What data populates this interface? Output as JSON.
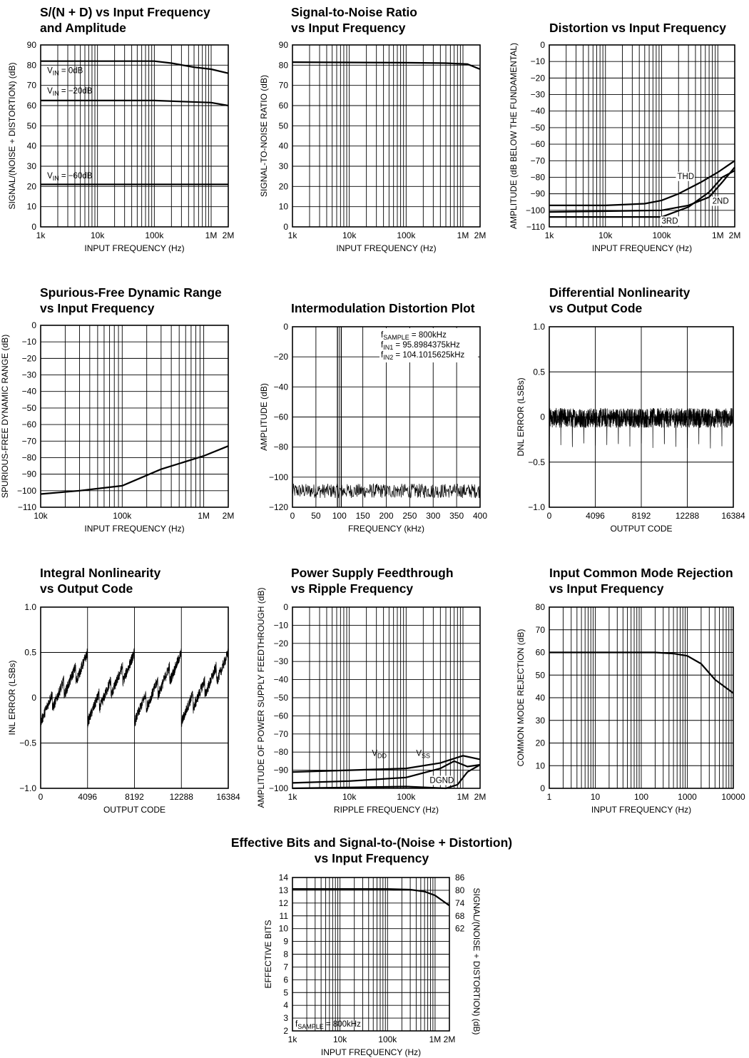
{
  "chart_data": [
    {
      "type": "line",
      "title": [
        "S/(N + D) vs Input Frequency",
        "and Amplitude"
      ],
      "xlabel": "INPUT FREQUENCY (Hz)",
      "ylabel": "SIGNAL/(NOISE + DISTORTION) (dB)",
      "xscale": "log",
      "xlim": [
        1000,
        2000000
      ],
      "ylim": [
        0,
        90
      ],
      "xticks": [
        {
          "v": 1000,
          "t": "1k"
        },
        {
          "v": 10000,
          "t": "10k"
        },
        {
          "v": 100000,
          "t": "100k"
        },
        {
          "v": 1000000,
          "t": "1M"
        },
        {
          "v": 2000000,
          "t": "2M"
        }
      ],
      "yticks": [
        {
          "v": 0,
          "t": "0"
        },
        {
          "v": 10,
          "t": "10"
        },
        {
          "v": 20,
          "t": "20"
        },
        {
          "v": 30,
          "t": "30"
        },
        {
          "v": 40,
          "t": "40"
        },
        {
          "v": 50,
          "t": "50"
        },
        {
          "v": 60,
          "t": "60"
        },
        {
          "v": 70,
          "t": "70"
        },
        {
          "v": 80,
          "t": "80"
        },
        {
          "v": 90,
          "t": "90"
        }
      ],
      "series": [
        {
          "name": "VIN = 0dB",
          "x": [
            1000,
            100000,
            200000,
            500000,
            1000000,
            2000000
          ],
          "y": [
            82,
            82,
            81,
            79,
            78,
            76
          ]
        },
        {
          "name": "VIN = −20dB",
          "x": [
            1000,
            100000,
            300000,
            1000000,
            2000000
          ],
          "y": [
            62.5,
            62.5,
            62,
            61.5,
            60
          ]
        },
        {
          "name": "VIN = −60dB",
          "x": [
            1000,
            2000000
          ],
          "y": [
            21,
            21
          ]
        }
      ],
      "labels": [
        {
          "text": "VIN = 0dB",
          "x": 1300,
          "y": 76
        },
        {
          "text": "VIN = −20dB",
          "x": 1300,
          "y": 66
        },
        {
          "text": "VIN = −60dB",
          "x": 1300,
          "y": 24
        }
      ]
    },
    {
      "type": "line",
      "title": [
        "Signal-to-Noise Ratio",
        "vs Input Frequency"
      ],
      "xlabel": "INPUT FREQUENCY (Hz)",
      "ylabel": "SIGNAL-TO-NOISE RATIO (dB)",
      "xscale": "log",
      "xlim": [
        1000,
        2000000
      ],
      "ylim": [
        0,
        90
      ],
      "xticks": [
        {
          "v": 1000,
          "t": "1k"
        },
        {
          "v": 10000,
          "t": "10k"
        },
        {
          "v": 100000,
          "t": "100k"
        },
        {
          "v": 1000000,
          "t": "1M"
        },
        {
          "v": 2000000,
          "t": "2M"
        }
      ],
      "yticks": [
        {
          "v": 0,
          "t": "0"
        },
        {
          "v": 10,
          "t": "10"
        },
        {
          "v": 20,
          "t": "20"
        },
        {
          "v": 30,
          "t": "30"
        },
        {
          "v": 40,
          "t": "40"
        },
        {
          "v": 50,
          "t": "50"
        },
        {
          "v": 60,
          "t": "60"
        },
        {
          "v": 70,
          "t": "70"
        },
        {
          "v": 80,
          "t": "80"
        },
        {
          "v": 90,
          "t": "90"
        }
      ],
      "series": [
        {
          "x": [
            1000,
            100000,
            500000,
            1200000,
            2000000
          ],
          "y": [
            81.5,
            81.2,
            81,
            80.5,
            78
          ]
        }
      ]
    },
    {
      "type": "line",
      "title": [
        "Distortion vs Input Frequency"
      ],
      "xlabel": "INPUT FREQUENCY (Hz)",
      "ylabel": "AMPLITUDE (dB BELOW THE FUNDAMENTAL)",
      "xscale": "log",
      "xlim": [
        1000,
        2000000
      ],
      "ylim": [
        -110,
        0
      ],
      "xticks": [
        {
          "v": 1000,
          "t": "1k"
        },
        {
          "v": 10000,
          "t": "10k"
        },
        {
          "v": 100000,
          "t": "100k"
        },
        {
          "v": 1000000,
          "t": "1M"
        },
        {
          "v": 2000000,
          "t": "2M"
        }
      ],
      "yticks": [
        {
          "v": 0,
          "t": "0"
        },
        {
          "v": -10,
          "t": "−10"
        },
        {
          "v": -20,
          "t": "−20"
        },
        {
          "v": -30,
          "t": "−30"
        },
        {
          "v": -40,
          "t": "−40"
        },
        {
          "v": -50,
          "t": "−50"
        },
        {
          "v": -60,
          "t": "−60"
        },
        {
          "v": -70,
          "t": "−70"
        },
        {
          "v": -80,
          "t": "−80"
        },
        {
          "v": -90,
          "t": "−90"
        },
        {
          "v": -100,
          "t": "−100"
        },
        {
          "v": -110,
          "t": "−110"
        }
      ],
      "series": [
        {
          "name": "THD",
          "x": [
            1000,
            10000,
            50000,
            100000,
            200000,
            500000,
            1000000,
            2000000
          ],
          "y": [
            -97,
            -97,
            -96,
            -94,
            -90,
            -83,
            -77,
            -70
          ]
        },
        {
          "name": "2ND",
          "x": [
            1000,
            100000,
            300000,
            700000,
            1200000,
            2000000
          ],
          "y": [
            -101,
            -100,
            -97,
            -92,
            -83,
            -74
          ]
        },
        {
          "name": "3RD",
          "x": [
            1000,
            20000,
            100000,
            300000,
            700000,
            1200000,
            2000000
          ],
          "y": [
            -104,
            -104,
            -104,
            -98,
            -89,
            -80,
            -76
          ]
        }
      ],
      "labels": [
        {
          "text": "THD",
          "x": 190000,
          "y": -81
        },
        {
          "text": "2ND",
          "x": 800000,
          "y": -96
        },
        {
          "text": "3RD",
          "x": 100000,
          "y": -108
        }
      ]
    },
    {
      "type": "line",
      "title": [
        "Spurious-Free Dynamic Range",
        "vs Input Frequency"
      ],
      "xlabel": "INPUT FREQUENCY (Hz)",
      "ylabel": "SPURIOUS-FREE DYNAMIC RANGE (dB)",
      "xscale": "log",
      "xlim": [
        10000,
        2000000
      ],
      "ylim": [
        -110,
        0
      ],
      "xticks": [
        {
          "v": 10000,
          "t": "10k"
        },
        {
          "v": 100000,
          "t": "100k"
        },
        {
          "v": 1000000,
          "t": "1M"
        },
        {
          "v": 2000000,
          "t": "2M"
        }
      ],
      "yticks": [
        {
          "v": 0,
          "t": "0"
        },
        {
          "v": -10,
          "t": "−10"
        },
        {
          "v": -20,
          "t": "−20"
        },
        {
          "v": -30,
          "t": "−30"
        },
        {
          "v": -40,
          "t": "−40"
        },
        {
          "v": -50,
          "t": "−50"
        },
        {
          "v": -60,
          "t": "−60"
        },
        {
          "v": -70,
          "t": "−70"
        },
        {
          "v": -80,
          "t": "−80"
        },
        {
          "v": -90,
          "t": "−90"
        },
        {
          "v": -100,
          "t": "−100"
        },
        {
          "v": -110,
          "t": "−110"
        }
      ],
      "series": [
        {
          "x": [
            10000,
            30000,
            100000,
            300000,
            1000000,
            2000000
          ],
          "y": [
            -102,
            -100,
            -97,
            -87,
            -79,
            -73
          ]
        }
      ]
    },
    {
      "type": "line",
      "title": [
        "Intermodulation Distortion Plot"
      ],
      "xlabel": "FREQUENCY (kHz)",
      "ylabel": "AMPLITUDE (dB)",
      "xscale": "linear",
      "xlim": [
        0,
        400
      ],
      "ylim": [
        -120,
        0
      ],
      "xticks": [
        {
          "v": 0,
          "t": "0"
        },
        {
          "v": 50,
          "t": "50"
        },
        {
          "v": 100,
          "t": "100"
        },
        {
          "v": 150,
          "t": "150"
        },
        {
          "v": 200,
          "t": "200"
        },
        {
          "v": 250,
          "t": "250"
        },
        {
          "v": 300,
          "t": "300"
        },
        {
          "v": 350,
          "t": "350"
        },
        {
          "v": 400,
          "t": "400"
        }
      ],
      "yticks": [
        {
          "v": 0,
          "t": "0"
        },
        {
          "v": -20,
          "t": "−20"
        },
        {
          "v": -40,
          "t": "−40"
        },
        {
          "v": -60,
          "t": "−60"
        },
        {
          "v": -80,
          "t": "−80"
        },
        {
          "v": -100,
          "t": "−100"
        },
        {
          "v": -120,
          "t": "−120"
        }
      ],
      "tones": [
        95.8984375,
        104.1015625
      ],
      "noise_floor": [
        -112,
        -100
      ],
      "legend_lines": [
        {
          "main": "f",
          "sub": "SAMPLE",
          "rest": " = 800kHz"
        },
        {
          "main": "f",
          "sub": "IN1",
          "rest": " = 95.8984375kHz"
        },
        {
          "main": "f",
          "sub": "IN2",
          "rest": " = 104.1015625kHz"
        }
      ]
    },
    {
      "type": "line",
      "title": [
        "Differential Nonlinearity",
        "vs Output Code"
      ],
      "xlabel": "OUTPUT CODE",
      "ylabel": "DNL ERROR (LSBs)",
      "xscale": "linear",
      "xlim": [
        0,
        16384
      ],
      "ylim": [
        -1.0,
        1.0
      ],
      "xticks": [
        {
          "v": 0,
          "t": "0"
        },
        {
          "v": 4096,
          "t": "4096"
        },
        {
          "v": 8192,
          "t": "8192"
        },
        {
          "v": 12288,
          "t": "12288"
        },
        {
          "v": 16384,
          "t": "16384"
        }
      ],
      "yticks": [
        {
          "v": 1.0,
          "t": "1.0"
        },
        {
          "v": 0.5,
          "t": "0.5"
        },
        {
          "v": 0,
          "t": "0"
        },
        {
          "v": -0.5,
          "t": "−0.5"
        },
        {
          "v": -1.0,
          "t": "−1.0"
        }
      ],
      "noise_band": [
        -0.12,
        0.1
      ],
      "spike_period": 1024,
      "spike_min": -0.35
    },
    {
      "type": "line",
      "title": [
        "Integral Nonlinearity",
        "vs Output Code"
      ],
      "xlabel": "OUTPUT CODE",
      "ylabel": "INL ERROR (LSBs)",
      "xscale": "linear",
      "xlim": [
        0,
        16384
      ],
      "ylim": [
        -1.0,
        1.0
      ],
      "xticks": [
        {
          "v": 0,
          "t": "0"
        },
        {
          "v": 4096,
          "t": "4096"
        },
        {
          "v": 8192,
          "t": "8192"
        },
        {
          "v": 12288,
          "t": "12288"
        },
        {
          "v": 16384,
          "t": "16384"
        }
      ],
      "yticks": [
        {
          "v": 1.0,
          "t": "1.0"
        },
        {
          "v": 0.5,
          "t": "0.5"
        },
        {
          "v": 0,
          "t": "0"
        },
        {
          "v": -0.5,
          "t": "−0.5"
        },
        {
          "v": -1.0,
          "t": "−1.0"
        }
      ],
      "sawtooth_period": 4096,
      "sawtooth_range": [
        -0.1,
        0.5
      ],
      "step_period": 1024,
      "step_drop": 0.35
    },
    {
      "type": "line",
      "title": [
        "Power Supply Feedthrough",
        "vs Ripple Frequency"
      ],
      "xlabel": "RIPPLE FREQUENCY (Hz)",
      "ylabel": "AMPLITUDE OF POWER SUPPLY FEEDTHROUGH (dB)",
      "xscale": "log",
      "xlim": [
        1000,
        2000000
      ],
      "ylim": [
        -100,
        0
      ],
      "xticks": [
        {
          "v": 1000,
          "t": "1k"
        },
        {
          "v": 10000,
          "t": "10k"
        },
        {
          "v": 100000,
          "t": "100k"
        },
        {
          "v": 1000000,
          "t": "1M"
        },
        {
          "v": 2000000,
          "t": "2M"
        }
      ],
      "yticks": [
        {
          "v": 0,
          "t": "0"
        },
        {
          "v": -10,
          "t": "−10"
        },
        {
          "v": -20,
          "t": "−20"
        },
        {
          "v": -30,
          "t": "−30"
        },
        {
          "v": -40,
          "t": "−40"
        },
        {
          "v": -50,
          "t": "−50"
        },
        {
          "v": -60,
          "t": "−60"
        },
        {
          "v": -70,
          "t": "−70"
        },
        {
          "v": -80,
          "t": "−80"
        },
        {
          "v": -90,
          "t": "−90"
        },
        {
          "v": -100,
          "t": "−100"
        }
      ],
      "series": [
        {
          "name": "VSS",
          "x": [
            1000,
            10000,
            100000,
            400000,
            1000000,
            2000000
          ],
          "y": [
            -91,
            -90,
            -89,
            -86,
            -82,
            -84
          ]
        },
        {
          "name": "VDD",
          "x": [
            1000,
            10000,
            100000,
            400000,
            700000,
            1200000,
            2000000
          ],
          "y": [
            -97,
            -96,
            -94,
            -89,
            -85,
            -88,
            -87
          ]
        },
        {
          "name": "DGND",
          "x": [
            1000,
            100000,
            500000,
            800000,
            1200000,
            2000000
          ],
          "y": [
            -100,
            -99,
            -100,
            -98,
            -91,
            -87
          ]
        }
      ],
      "labels": [
        {
          "text": "VDD",
          "sub": "DD",
          "x": 25000,
          "y": -82
        },
        {
          "text": "VSS",
          "sub": "SS",
          "x": 150000,
          "y": -82
        },
        {
          "text": "DGND",
          "x": 260000,
          "y": -97
        }
      ]
    },
    {
      "type": "line",
      "title": [
        "Input Common Mode Rejection",
        "vs Input Frequency"
      ],
      "xlabel": "INPUT FREQUENCY (Hz)",
      "ylabel": "COMMON MODE REJECTION (dB)",
      "xscale": "log",
      "xlim": [
        1,
        10000
      ],
      "ylim": [
        0,
        80
      ],
      "xticks": [
        {
          "v": 1,
          "t": "1"
        },
        {
          "v": 10,
          "t": "10"
        },
        {
          "v": 100,
          "t": "100"
        },
        {
          "v": 1000,
          "t": "1000"
        },
        {
          "v": 10000,
          "t": "10000"
        }
      ],
      "yticks": [
        {
          "v": 0,
          "t": "0"
        },
        {
          "v": 10,
          "t": "10"
        },
        {
          "v": 20,
          "t": "20"
        },
        {
          "v": 30,
          "t": "30"
        },
        {
          "v": 40,
          "t": "40"
        },
        {
          "v": 50,
          "t": "50"
        },
        {
          "v": 60,
          "t": "60"
        },
        {
          "v": 70,
          "t": "70"
        },
        {
          "v": 80,
          "t": "80"
        }
      ],
      "series": [
        {
          "x": [
            1,
            100,
            200,
            500,
            1000,
            2000,
            4000,
            10000
          ],
          "y": [
            60,
            60,
            60,
            59.5,
            58.5,
            55,
            48,
            42
          ]
        }
      ]
    },
    {
      "type": "line",
      "title": [
        "Effective Bits and Signal-to-(Noise + Distortion)",
        "vs Input Frequency"
      ],
      "xlabel": "INPUT FREQUENCY (Hz)",
      "ylabel": "EFFECTIVE BITS",
      "y2label": "SIGNAL/(NOISE + DISTORTION) (dB)",
      "xscale": "log",
      "xlim": [
        1000,
        2000000
      ],
      "ylim": [
        2,
        14
      ],
      "xticks": [
        {
          "v": 1000,
          "t": "1k"
        },
        {
          "v": 10000,
          "t": "10k"
        },
        {
          "v": 100000,
          "t": "100k"
        },
        {
          "v": 1000000,
          "t": "1M"
        },
        {
          "v": 2000000,
          "t": "2M"
        }
      ],
      "yticks": [
        {
          "v": 14,
          "t": "14"
        },
        {
          "v": 13,
          "t": "13"
        },
        {
          "v": 12,
          "t": "12"
        },
        {
          "v": 11,
          "t": "11"
        },
        {
          "v": 10,
          "t": "10"
        },
        {
          "v": 9,
          "t": "9"
        },
        {
          "v": 8,
          "t": "8"
        },
        {
          "v": 7,
          "t": "7"
        },
        {
          "v": 6,
          "t": "6"
        },
        {
          "v": 5,
          "t": "5"
        },
        {
          "v": 4,
          "t": "4"
        },
        {
          "v": 3,
          "t": "3"
        },
        {
          "v": 2,
          "t": "2"
        }
      ],
      "y2ticks": [
        {
          "v": 14,
          "t": "86"
        },
        {
          "v": 13,
          "t": "80"
        },
        {
          "v": 12,
          "t": "74"
        },
        {
          "v": 11,
          "t": "68"
        },
        {
          "v": 10,
          "t": "62"
        }
      ],
      "series": [
        {
          "x": [
            1000,
            100000,
            300000,
            600000,
            1000000,
            2000000
          ],
          "y": [
            13.1,
            13.1,
            13.05,
            12.9,
            12.6,
            11.8
          ]
        }
      ],
      "annotation": {
        "main": "f",
        "sub": "SAMPLE",
        "rest": " = 800kHz"
      }
    }
  ]
}
